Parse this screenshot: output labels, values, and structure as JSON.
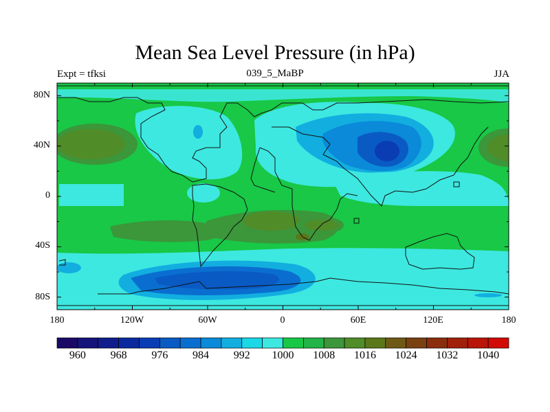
{
  "title": "Mean Sea Level Pressure (in hPa)",
  "left_string": "Expt = tfksi",
  "center_string": "039_5_MaBP",
  "right_string": "JJA",
  "map": {
    "lon_ticks": [
      "180",
      "120W",
      "60W",
      "0",
      "60E",
      "120E",
      "180"
    ],
    "lat_ticks": [
      "80N",
      "40N",
      "0",
      "40S",
      "80S"
    ]
  },
  "colorbar": {
    "levels": [
      956,
      960,
      964,
      968,
      972,
      976,
      980,
      984,
      988,
      992,
      996,
      1000,
      1004,
      1008,
      1012,
      1016,
      1020,
      1024,
      1028,
      1032,
      1036,
      1040,
      1044
    ],
    "labels": [
      "960",
      "968",
      "976",
      "984",
      "992",
      "1000",
      "1008",
      "1016",
      "1024",
      "1032",
      "1040"
    ],
    "colors": [
      "#1a0a66",
      "#14147a",
      "#0f1e8c",
      "#0a2a9e",
      "#0a3cb4",
      "#0a5ac4",
      "#0a6ed0",
      "#0a8ad8",
      "#12aee0",
      "#1ad8e6",
      "#3de8e0",
      "#18c846",
      "#22b446",
      "#3c963a",
      "#508c28",
      "#5a781a",
      "#6e5a14",
      "#7a4010",
      "#8a2e0c",
      "#a0200a",
      "#b81408",
      "#d20a06"
    ]
  }
}
